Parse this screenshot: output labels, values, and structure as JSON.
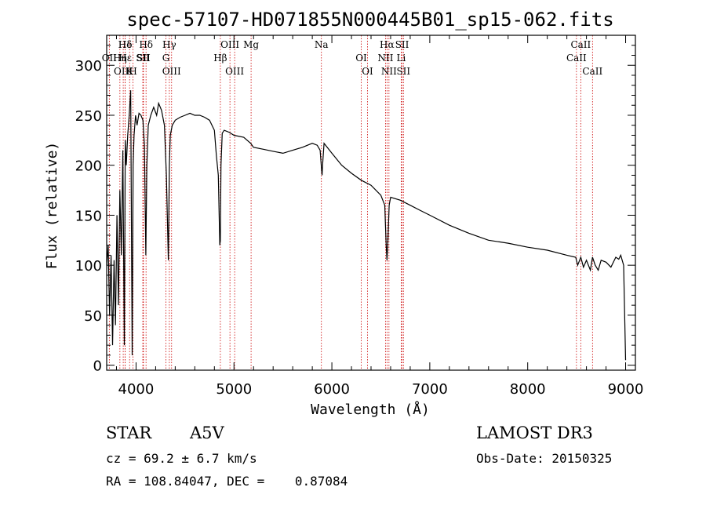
{
  "chart_data": {
    "type": "line",
    "title": "spec-57107-HD071855N000445B01_sp15-062.fits",
    "xlabel": "Wavelength (Å)",
    "ylabel": "Flux (relative)",
    "xlim": [
      3700,
      9100
    ],
    "ylim": [
      -5,
      330
    ],
    "xticks": [
      4000,
      5000,
      6000,
      7000,
      8000,
      9000
    ],
    "yticks": [
      0,
      50,
      100,
      150,
      200,
      250,
      300
    ],
    "series": [
      {
        "name": "flux",
        "x": [
          3700,
          3715,
          3730,
          3745,
          3760,
          3775,
          3790,
          3805,
          3820,
          3835,
          3850,
          3865,
          3880,
          3890,
          3900,
          3915,
          3930,
          3945,
          3960,
          3970,
          3980,
          3995,
          4010,
          4030,
          4050,
          4070,
          4085,
          4100,
          4110,
          4125,
          4150,
          4180,
          4210,
          4230,
          4260,
          4290,
          4310,
          4330,
          4340,
          4350,
          4370,
          4400,
          4450,
          4500,
          4550,
          4600,
          4650,
          4700,
          4750,
          4800,
          4820,
          4840,
          4855,
          4861,
          4867,
          4880,
          4900,
          4950,
          5000,
          5100,
          5170,
          5200,
          5300,
          5400,
          5500,
          5600,
          5700,
          5800,
          5850,
          5880,
          5895,
          5900,
          5905,
          5920,
          6000,
          6100,
          6200,
          6300,
          6400,
          6500,
          6540,
          6555,
          6563,
          6571,
          6585,
          6600,
          6700,
          6800,
          6900,
          7000,
          7200,
          7400,
          7600,
          7800,
          8000,
          8200,
          8400,
          8490,
          8510,
          8542,
          8570,
          8600,
          8640,
          8662,
          8690,
          8720,
          8750,
          8800,
          8850,
          8900,
          8930,
          8950,
          8980,
          9000
        ],
        "values": [
          100,
          120,
          50,
          110,
          20,
          105,
          40,
          150,
          60,
          175,
          110,
          215,
          20,
          225,
          200,
          230,
          250,
          275,
          10,
          200,
          230,
          250,
          240,
          252,
          250,
          245,
          220,
          110,
          200,
          240,
          250,
          258,
          250,
          262,
          255,
          240,
          190,
          105,
          200,
          230,
          240,
          245,
          248,
          250,
          252,
          250,
          250,
          248,
          245,
          235,
          210,
          190,
          120,
          125,
          200,
          232,
          235,
          233,
          230,
          228,
          222,
          218,
          216,
          214,
          212,
          215,
          218,
          222,
          220,
          215,
          195,
          190,
          200,
          222,
          212,
          200,
          192,
          185,
          180,
          170,
          160,
          120,
          105,
          120,
          160,
          168,
          165,
          160,
          155,
          150,
          140,
          132,
          125,
          122,
          118,
          115,
          110,
          108,
          100,
          108,
          98,
          105,
          95,
          108,
          100,
          95,
          105,
          103,
          98,
          108,
          106,
          110,
          100,
          5
        ]
      }
    ],
    "spectral_lines": [
      {
        "label": "Hδ",
        "wavelength": 3889
      },
      {
        "label": "OII",
        "wavelength": 3727
      },
      {
        "label": "OIII",
        "wavelength": 3869
      },
      {
        "label": "Hε",
        "wavelength": 3889
      },
      {
        "label": "Hη",
        "wavelength": 3835
      },
      {
        "label": "K",
        "wavelength": 3934
      },
      {
        "label": "He",
        "wavelength": 3889
      },
      {
        "label": "SII",
        "wavelength": 4069
      },
      {
        "label": "H",
        "wavelength": 3969
      },
      {
        "label": "Hδ",
        "wavelength": 4102
      },
      {
        "label": "SII",
        "wavelength": 4076
      },
      {
        "label": "OIII",
        "wavelength": 4363
      },
      {
        "label": "Hγ",
        "wavelength": 4340
      },
      {
        "label": "G",
        "wavelength": 4305
      },
      {
        "label": "OIII",
        "wavelength": 5007
      },
      {
        "label": "OIII",
        "wavelength": 4959
      },
      {
        "label": "Hβ",
        "wavelength": 4861
      },
      {
        "label": "Mg",
        "wavelength": 5175
      },
      {
        "label": "Na",
        "wavelength": 5893
      },
      {
        "label": "OI",
        "wavelength": 6300
      },
      {
        "label": "OI",
        "wavelength": 6364
      },
      {
        "label": "Hα",
        "wavelength": 6563
      },
      {
        "label": "NII",
        "wavelength": 6548
      },
      {
        "label": "NII",
        "wavelength": 6583
      },
      {
        "label": "SII",
        "wavelength": 6717
      },
      {
        "label": "Li",
        "wavelength": 6708
      },
      {
        "label": "SII",
        "wavelength": 6731
      },
      {
        "label": "CaII",
        "wavelength": 8542
      },
      {
        "label": "CaII",
        "wavelength": 8498
      },
      {
        "label": "CaII",
        "wavelength": 8662
      }
    ],
    "colors": {
      "spectrum": "#000000",
      "line_marker": "#cc0000",
      "axes": "#000000"
    }
  },
  "info": {
    "object_type": "STAR",
    "subclass": "A5V",
    "survey": "LAMOST DR3",
    "cz": "cz = 69.2 ± 6.7 km/s",
    "obs_date": "Obs-Date: 20150325",
    "coords": "RA = 108.84047, DEC =    0.87084"
  }
}
